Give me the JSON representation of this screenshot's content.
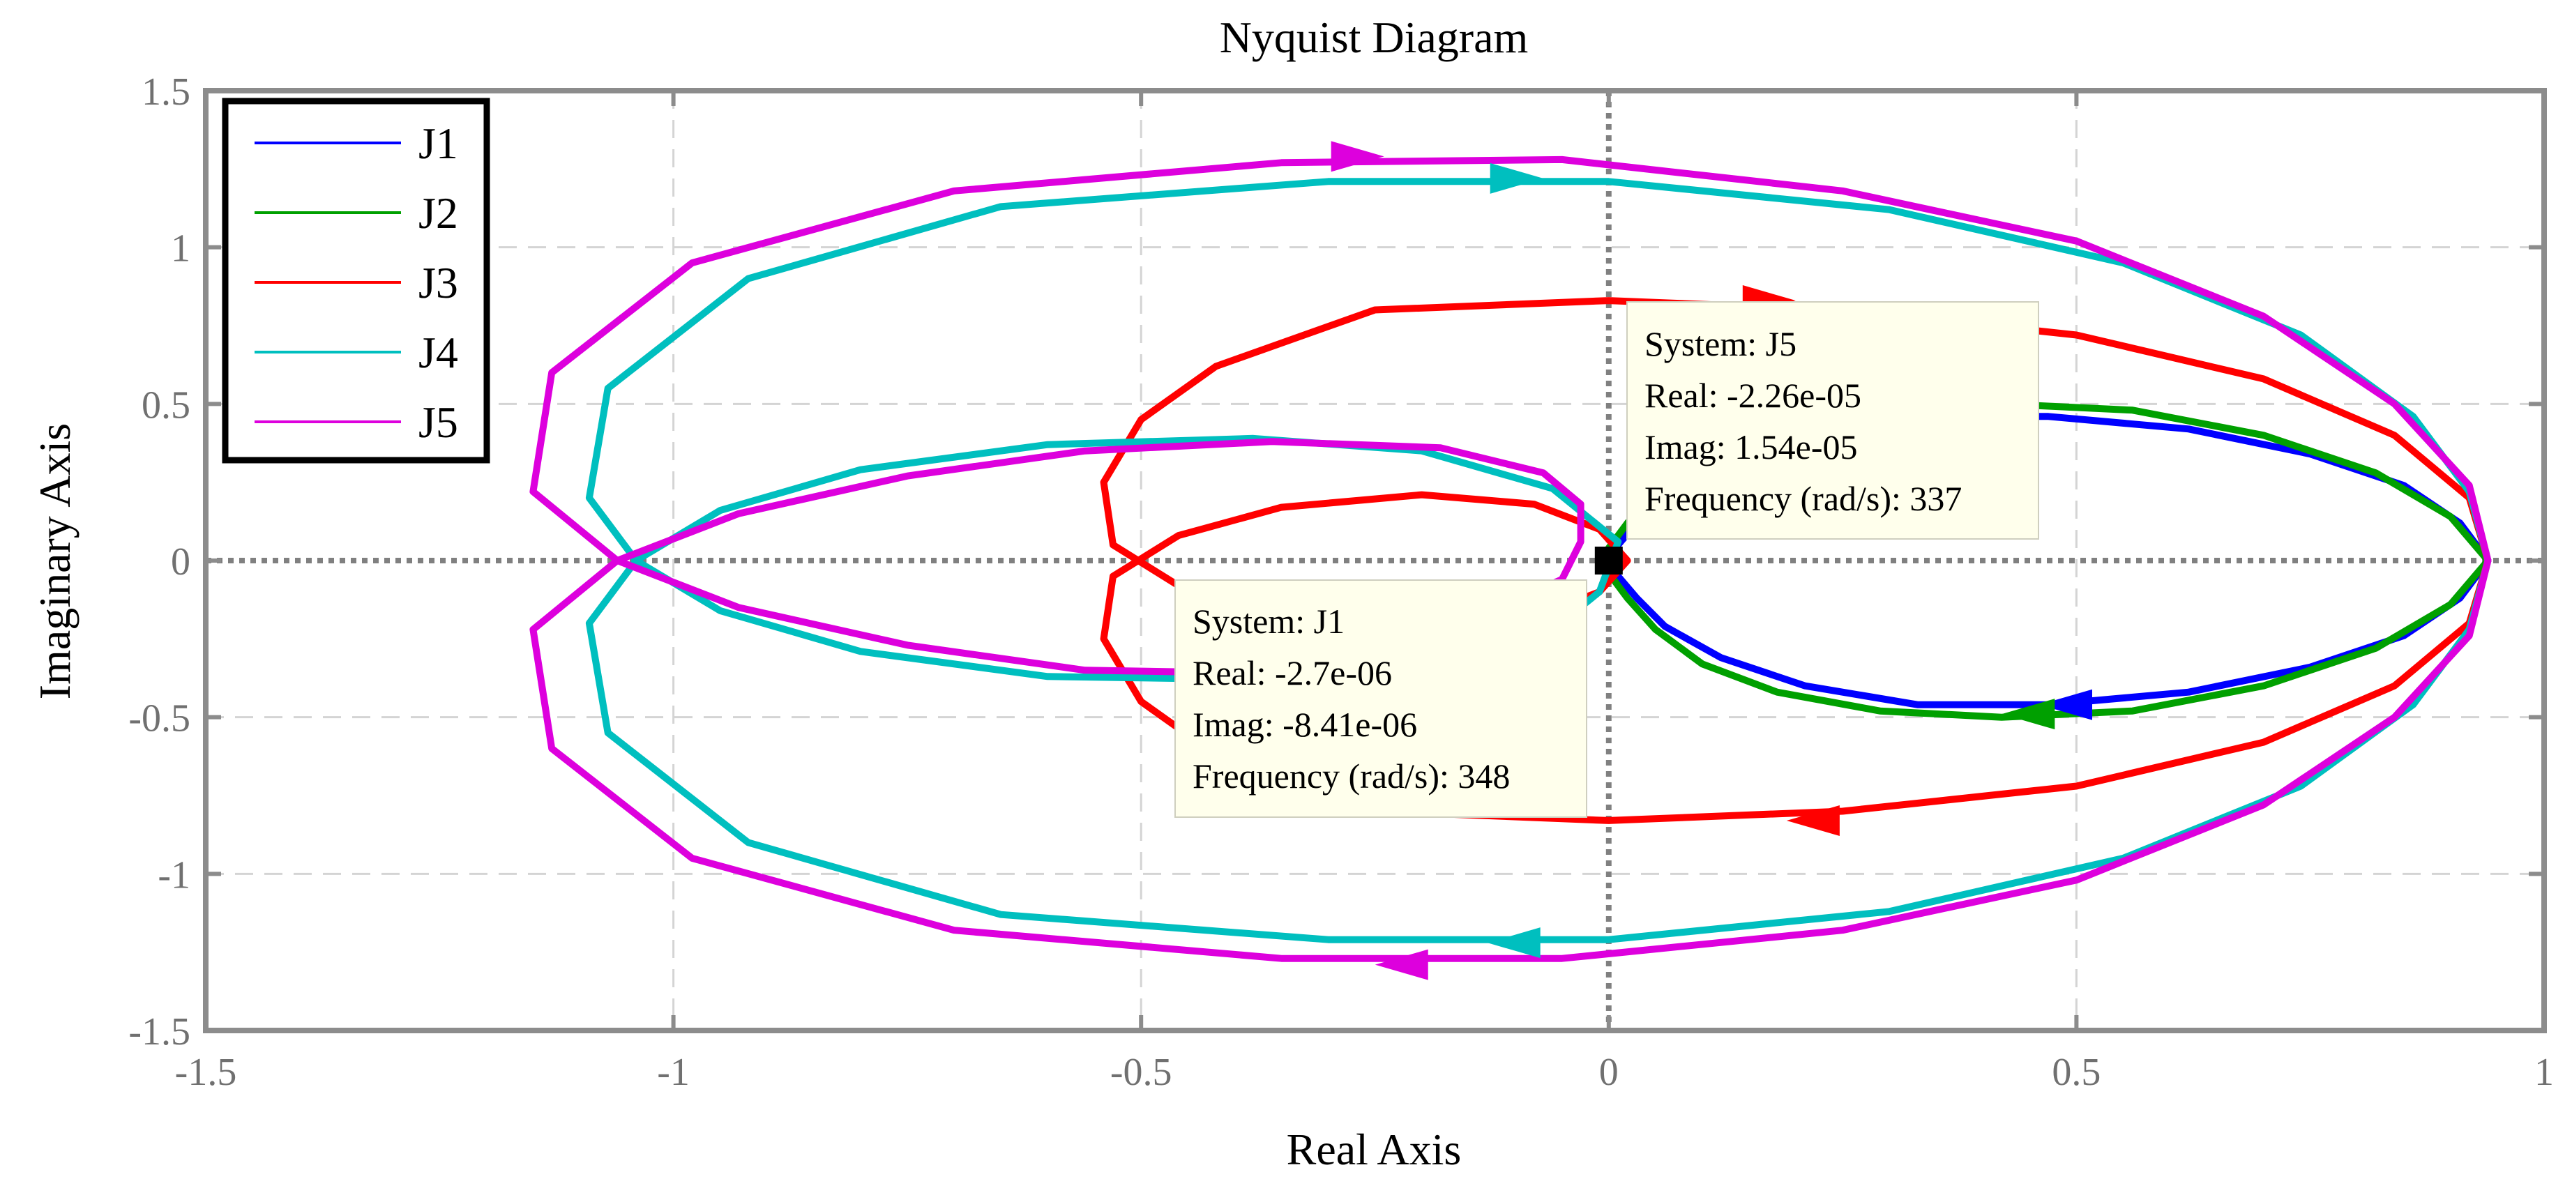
{
  "chart_data": {
    "type": "line",
    "title": "Nyquist Diagram",
    "xlabel": "Real Axis",
    "ylabel": "Imaginary Axis",
    "xlim": [
      -1.5,
      1
    ],
    "ylim": [
      -1.5,
      1.5
    ],
    "xticks": [
      "-1.5",
      "-1",
      "-0.5",
      "0",
      "0.5",
      "1"
    ],
    "yticks": [
      "1.5",
      "1",
      "0.5",
      "0",
      "-0.5",
      "-1",
      "-1.5"
    ],
    "grid": true,
    "legend_position": "top-left",
    "series": [
      {
        "name": "J1",
        "color": "#0000ff",
        "points": [
          [
            0.94,
            0.0
          ],
          [
            0.91,
            0.12
          ],
          [
            0.85,
            0.24
          ],
          [
            0.75,
            0.34
          ],
          [
            0.62,
            0.42
          ],
          [
            0.47,
            0.46
          ],
          [
            0.33,
            0.46
          ],
          [
            0.21,
            0.4
          ],
          [
            0.12,
            0.31
          ],
          [
            0.06,
            0.21
          ],
          [
            0.03,
            0.12
          ],
          [
            0.01,
            0.05
          ],
          [
            0.0,
            0.0
          ],
          [
            0.01,
            -0.05
          ],
          [
            0.03,
            -0.12
          ],
          [
            0.06,
            -0.21
          ],
          [
            0.12,
            -0.31
          ],
          [
            0.21,
            -0.4
          ],
          [
            0.33,
            -0.46
          ],
          [
            0.47,
            -0.46
          ],
          [
            0.62,
            -0.42
          ],
          [
            0.75,
            -0.34
          ],
          [
            0.85,
            -0.24
          ],
          [
            0.91,
            -0.12
          ],
          [
            0.94,
            0.0
          ]
        ],
        "arrows": [
          {
            "x": 0.49,
            "y": -0.46,
            "direction": "left"
          }
        ]
      },
      {
        "name": "J2",
        "color": "#00a000",
        "points": [
          [
            0.94,
            0.0
          ],
          [
            0.9,
            0.14
          ],
          [
            0.82,
            0.28
          ],
          [
            0.7,
            0.4
          ],
          [
            0.56,
            0.48
          ],
          [
            0.42,
            0.5
          ],
          [
            0.29,
            0.48
          ],
          [
            0.18,
            0.42
          ],
          [
            0.1,
            0.33
          ],
          [
            0.05,
            0.22
          ],
          [
            0.02,
            0.12
          ],
          [
            0.0,
            0.04
          ],
          [
            -0.01,
            0.0
          ],
          [
            0.0,
            -0.04
          ],
          [
            0.02,
            -0.12
          ],
          [
            0.05,
            -0.22
          ],
          [
            0.1,
            -0.33
          ],
          [
            0.18,
            -0.42
          ],
          [
            0.29,
            -0.48
          ],
          [
            0.42,
            -0.5
          ],
          [
            0.56,
            -0.48
          ],
          [
            0.7,
            -0.4
          ],
          [
            0.82,
            -0.28
          ],
          [
            0.9,
            -0.14
          ],
          [
            0.94,
            0.0
          ]
        ],
        "arrows": [
          {
            "x": 0.45,
            "y": -0.49,
            "direction": "left"
          }
        ]
      },
      {
        "name": "J3",
        "color": "#ff0000",
        "points": [
          [
            0.94,
            0.0
          ],
          [
            0.92,
            -0.2
          ],
          [
            0.84,
            -0.4
          ],
          [
            0.7,
            -0.58
          ],
          [
            0.5,
            -0.72
          ],
          [
            0.25,
            -0.8
          ],
          [
            0.0,
            -0.83
          ],
          [
            -0.25,
            -0.8
          ],
          [
            -0.42,
            -0.62
          ],
          [
            -0.5,
            -0.45
          ],
          [
            -0.54,
            -0.25
          ],
          [
            -0.53,
            -0.05
          ],
          [
            -0.46,
            0.08
          ],
          [
            -0.35,
            0.17
          ],
          [
            -0.2,
            0.21
          ],
          [
            -0.08,
            0.18
          ],
          [
            -0.01,
            0.1
          ],
          [
            0.02,
            0.0
          ],
          [
            -0.01,
            -0.1
          ],
          [
            -0.08,
            -0.18
          ],
          [
            -0.2,
            -0.21
          ],
          [
            -0.35,
            -0.17
          ],
          [
            -0.46,
            -0.08
          ],
          [
            -0.53,
            0.05
          ],
          [
            -0.54,
            0.25
          ],
          [
            -0.5,
            0.45
          ],
          [
            -0.42,
            0.62
          ],
          [
            -0.25,
            0.8
          ],
          [
            0.0,
            0.83
          ],
          [
            0.25,
            0.8
          ],
          [
            0.5,
            0.72
          ],
          [
            0.7,
            0.58
          ],
          [
            0.84,
            0.4
          ],
          [
            0.92,
            0.2
          ],
          [
            0.94,
            0.0
          ]
        ],
        "arrows": [
          {
            "x": 0.17,
            "y": 0.83,
            "direction": "right"
          },
          {
            "x": 0.22,
            "y": -0.83,
            "direction": "left"
          }
        ]
      },
      {
        "name": "J4",
        "color": "#00bfbf",
        "points": [
          [
            0.94,
            0.0
          ],
          [
            0.92,
            -0.22
          ],
          [
            0.86,
            -0.46
          ],
          [
            0.74,
            -0.72
          ],
          [
            0.55,
            -0.95
          ],
          [
            0.3,
            -1.12
          ],
          [
            0.0,
            -1.21
          ],
          [
            -0.3,
            -1.21
          ],
          [
            -0.65,
            -1.13
          ],
          [
            -0.92,
            -0.9
          ],
          [
            -1.07,
            -0.55
          ],
          [
            -1.09,
            -0.2
          ],
          [
            -1.04,
            0.0
          ],
          [
            -0.95,
            0.16
          ],
          [
            -0.8,
            0.29
          ],
          [
            -0.6,
            0.37
          ],
          [
            -0.38,
            0.39
          ],
          [
            -0.2,
            0.35
          ],
          [
            -0.06,
            0.23
          ],
          [
            0.01,
            0.06
          ],
          [
            -0.01,
            -0.1
          ],
          [
            -0.06,
            -0.22
          ],
          [
            -0.2,
            -0.32
          ],
          [
            -0.38,
            -0.38
          ],
          [
            -0.6,
            -0.37
          ],
          [
            -0.8,
            -0.29
          ],
          [
            -0.95,
            -0.16
          ],
          [
            -1.04,
            0.0
          ],
          [
            -1.09,
            0.2
          ],
          [
            -1.07,
            0.55
          ],
          [
            -0.92,
            0.9
          ],
          [
            -0.65,
            1.13
          ],
          [
            -0.3,
            1.21
          ],
          [
            0.0,
            1.21
          ],
          [
            0.3,
            1.12
          ],
          [
            0.55,
            0.95
          ],
          [
            0.74,
            0.72
          ],
          [
            0.86,
            0.46
          ],
          [
            0.92,
            0.22
          ],
          [
            0.94,
            0.0
          ]
        ],
        "arrows": [
          {
            "x": -0.1,
            "y": 1.22,
            "direction": "right"
          },
          {
            "x": -0.1,
            "y": -1.22,
            "direction": "left"
          }
        ]
      },
      {
        "name": "J5",
        "color": "#dd00dd",
        "points": [
          [
            0.94,
            0.0
          ],
          [
            0.92,
            -0.24
          ],
          [
            0.84,
            -0.5
          ],
          [
            0.7,
            -0.78
          ],
          [
            0.5,
            -1.02
          ],
          [
            0.25,
            -1.18
          ],
          [
            -0.05,
            -1.27
          ],
          [
            -0.35,
            -1.27
          ],
          [
            -0.7,
            -1.18
          ],
          [
            -0.98,
            -0.95
          ],
          [
            -1.13,
            -0.6
          ],
          [
            -1.15,
            -0.22
          ],
          [
            -1.06,
            0.0
          ],
          [
            -0.93,
            0.15
          ],
          [
            -0.75,
            0.27
          ],
          [
            -0.56,
            0.35
          ],
          [
            -0.36,
            0.38
          ],
          [
            -0.18,
            0.36
          ],
          [
            -0.07,
            0.28
          ],
          [
            -0.03,
            0.18
          ],
          [
            -0.03,
            0.06
          ],
          [
            -0.05,
            -0.06
          ],
          [
            -0.14,
            -0.18
          ],
          [
            -0.36,
            -0.36
          ],
          [
            -0.56,
            -0.35
          ],
          [
            -0.75,
            -0.27
          ],
          [
            -0.93,
            -0.15
          ],
          [
            -1.06,
            0.0
          ],
          [
            -1.15,
            0.22
          ],
          [
            -1.13,
            0.6
          ],
          [
            -0.98,
            0.95
          ],
          [
            -0.7,
            1.18
          ],
          [
            -0.35,
            1.27
          ],
          [
            -0.05,
            1.28
          ],
          [
            0.25,
            1.18
          ],
          [
            0.5,
            1.02
          ],
          [
            0.7,
            0.78
          ],
          [
            0.84,
            0.5
          ],
          [
            0.92,
            0.24
          ],
          [
            0.94,
            0.0
          ]
        ],
        "arrows": [
          {
            "x": -0.27,
            "y": 1.29,
            "direction": "right"
          },
          {
            "x": -0.22,
            "y": -1.29,
            "direction": "left"
          }
        ]
      }
    ],
    "marker": {
      "x": 0.0,
      "y": 0.0,
      "color": "#000000"
    },
    "datatips": [
      {
        "lines": [
          "System: J5",
          "Real: -2.26e-05",
          "Imag: 1.54e-05",
          "Frequency (rad/s): 337"
        ]
      },
      {
        "lines": [
          "System: J1",
          "Real: -2.7e-06",
          "Imag: -8.41e-06",
          "Frequency (rad/s): 348"
        ]
      }
    ]
  }
}
